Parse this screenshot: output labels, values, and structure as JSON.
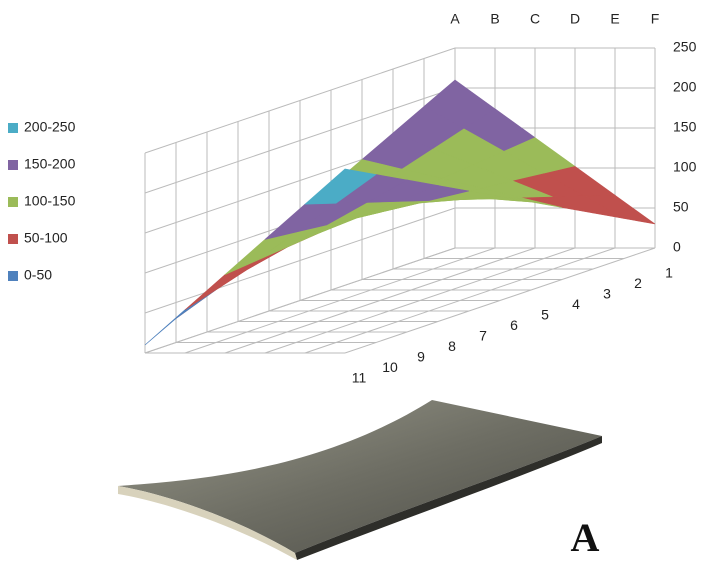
{
  "chart_data": {
    "type": "surface",
    "categories": [
      "1",
      "2",
      "3",
      "4",
      "5",
      "6",
      "7",
      "8",
      "9",
      "10",
      "11"
    ],
    "series": [
      {
        "name": "A",
        "values": [
          210,
          190,
          170,
          150,
          130,
          110,
          90,
          70,
          50,
          30,
          10
        ]
      },
      {
        "name": "B",
        "values": [
          174,
          162,
          150,
          138,
          126,
          114,
          102,
          90,
          78,
          66,
          54
        ]
      },
      {
        "name": "C",
        "values": [
          138,
          134,
          130,
          126,
          122,
          118,
          114,
          110,
          106,
          102,
          98
        ]
      },
      {
        "name": "D",
        "values": [
          102,
          106,
          110,
          114,
          118,
          122,
          126,
          130,
          134,
          138,
          142
        ]
      },
      {
        "name": "E",
        "values": [
          66,
          78,
          90,
          102,
          114,
          126,
          138,
          150,
          162,
          174,
          186
        ]
      },
      {
        "name": "F",
        "values": [
          30,
          50,
          70,
          90,
          110,
          130,
          150,
          170,
          190,
          210,
          230
        ]
      }
    ],
    "bands": [
      {
        "label": "200-250",
        "min": 200,
        "max": 250,
        "color": "#4bacc6"
      },
      {
        "label": "150-200",
        "min": 150,
        "max": 200,
        "color": "#8064a2"
      },
      {
        "label": "100-150",
        "min": 100,
        "max": 150,
        "color": "#9bbb59"
      },
      {
        "label": "50-100",
        "min": 50,
        "max": 100,
        "color": "#c0504d"
      },
      {
        "label": "0-50",
        "min": 0,
        "max": 50,
        "color": "#4f81bd"
      }
    ],
    "zlim": [
      0,
      250
    ],
    "zticks": [
      0,
      50,
      100,
      150,
      200,
      250
    ],
    "grid": true
  },
  "figure_label": "A"
}
